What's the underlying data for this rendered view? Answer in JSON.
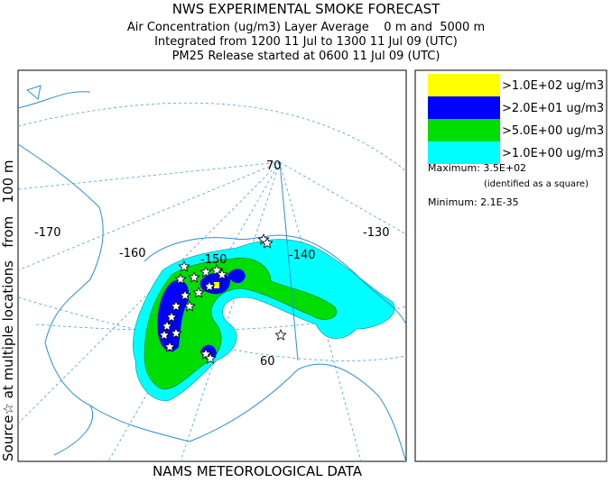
{
  "header": {
    "title": "NWS EXPERIMENTAL SMOKE FORECAST",
    "lines": [
      "Air Concentration (ug/m3) Layer Average    0 m and  5000 m",
      "Integrated from 1200 11 Jul to 1300 11 Jul 09 (UTC)",
      "PM25 Release started at 0600 11 Jul 09 (UTC)"
    ]
  },
  "side_label": "Source☆ at multiple locations   from   100 m",
  "footer": "NAMS METEOROLOGICAL DATA",
  "map": {
    "grid_labels": [
      {
        "text": "-170"
      },
      {
        "text": "-160"
      },
      {
        "text": "-150"
      },
      {
        "text": "-140"
      },
      {
        "text": "-130"
      },
      {
        "text": "70"
      },
      {
        "text": "60"
      }
    ]
  },
  "legend": {
    "items": [
      {
        "label": ">1.0E+02 ug/m3",
        "color": "#ffff00"
      },
      {
        "label": ">2.0E+01 ug/m3",
        "color": "#0000ff"
      },
      {
        "label": ">5.0E+00 ug/m3",
        "color": "#00dd00"
      },
      {
        "label": ">1.0E+00 ug/m3",
        "color": "#00ffff"
      }
    ],
    "maximum": "Maximum: 3.5E+02",
    "maximum_note": "(identified as a square)",
    "minimum": "Minimum: 2.1E-35"
  }
}
